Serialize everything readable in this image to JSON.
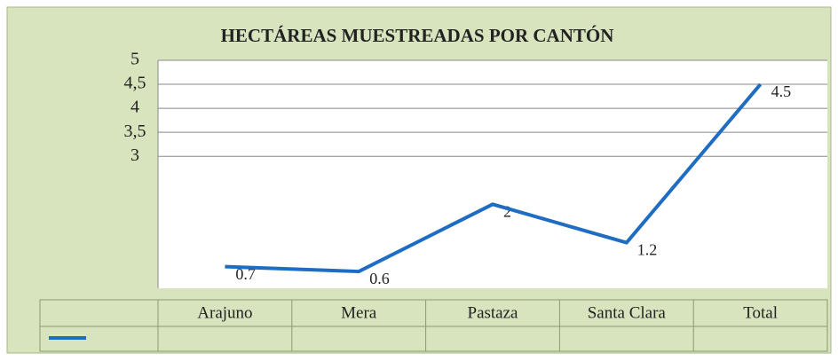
{
  "chart_data": {
    "type": "line",
    "title": "HECTÁREAS MUESTREADAS POR CANTÓN",
    "categories": [
      "Arajuno",
      "Mera",
      "Pastaza",
      "Santa Clara",
      "Total"
    ],
    "series": [
      {
        "color": "#1f6dc2",
        "values": [
          0.7,
          0.6,
          2,
          1.2,
          4.5
        ]
      }
    ],
    "ylim": [
      0.25,
      5
    ],
    "yticks": [
      5,
      {
        "value": 4.5,
        "label": "4,5"
      },
      4,
      {
        "value": 3.5,
        "label": "3,5"
      },
      3
    ],
    "grid": true
  }
}
